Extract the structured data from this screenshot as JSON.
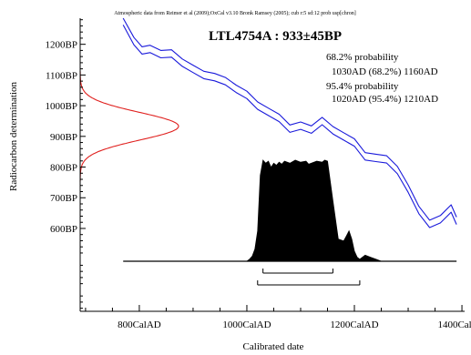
{
  "chart_data": {
    "type": "area",
    "header": "Atmospheric data from Reimer et al (2009);OxCal v3.10 Bronk Ramsey (2005); cub r:5 sd:12 prob usp[chron]",
    "title": "LTL4754A : 933±45BP",
    "xlabel": "Calibrated date",
    "ylabel": "Radiocarbon determination",
    "x_ticks": [
      "800CalAD",
      "1000CalAD",
      "1200CalAD",
      "1400CalAD"
    ],
    "x_tick_values": [
      800,
      1000,
      1200,
      1400
    ],
    "y_ticks": [
      "1200BP",
      "1100BP",
      "1000BP",
      "900BP",
      "800BP",
      "700BP",
      "600BP"
    ],
    "y_tick_values": [
      1200,
      1100,
      1000,
      900,
      800,
      700,
      600
    ],
    "xlim": [
      690,
      1405
    ],
    "ylim": [
      330,
      1285
    ],
    "annotations": {
      "p68_label": "68.2% probability",
      "p68_range": "1030AD (68.2%) 1160AD",
      "p95_label": "95.4% probability",
      "p95_range": "1020AD (95.4%) 1210AD"
    },
    "measurement": {
      "mean_bp": 933,
      "sigma_bp": 45
    },
    "range_68": [
      1030,
      1160
    ],
    "range_95": [
      1020,
      1210
    ],
    "calibration_curve": {
      "years": [
        770,
        790,
        805,
        820,
        840,
        860,
        880,
        900,
        920,
        940,
        960,
        980,
        1000,
        1020,
        1040,
        1060,
        1080,
        1100,
        1120,
        1140,
        1160,
        1180,
        1200,
        1220,
        1240,
        1260,
        1280,
        1300,
        1320,
        1340,
        1360,
        1380,
        1390
      ],
      "bp": [
        1275,
        1210,
        1180,
        1185,
        1168,
        1170,
        1140,
        1120,
        1100,
        1093,
        1080,
        1055,
        1035,
        1000,
        980,
        960,
        925,
        935,
        922,
        950,
        920,
        900,
        880,
        835,
        830,
        825,
        790,
        730,
        660,
        615,
        630,
        665,
        625
      ],
      "sigma": 12
    },
    "posterior_probability": {
      "years": [
        1000,
        1005,
        1010,
        1015,
        1020,
        1025,
        1030,
        1035,
        1040,
        1045,
        1050,
        1055,
        1060,
        1065,
        1070,
        1080,
        1090,
        1100,
        1110,
        1115,
        1120,
        1130,
        1140,
        1145,
        1150,
        1160,
        1170,
        1180,
        1185,
        1190,
        1195,
        1200,
        1205,
        1210,
        1220,
        1230,
        1240,
        1250
      ],
      "values": [
        0,
        0.02,
        0.05,
        0.12,
        0.3,
        0.85,
        1.0,
        0.97,
        0.99,
        0.93,
        0.97,
        0.95,
        0.98,
        0.96,
        0.99,
        0.97,
        1.0,
        0.98,
        0.99,
        0.96,
        0.97,
        0.99,
        0.98,
        1.0,
        0.99,
        0.6,
        0.22,
        0.2,
        0.25,
        0.3,
        0.22,
        0.1,
        0.04,
        0.02,
        0.06,
        0.04,
        0.02,
        0
      ]
    },
    "colors": {
      "curve": "#1a1adb",
      "measurement": "#e0201e",
      "posterior": "#000000",
      "axis": "#000000"
    }
  }
}
